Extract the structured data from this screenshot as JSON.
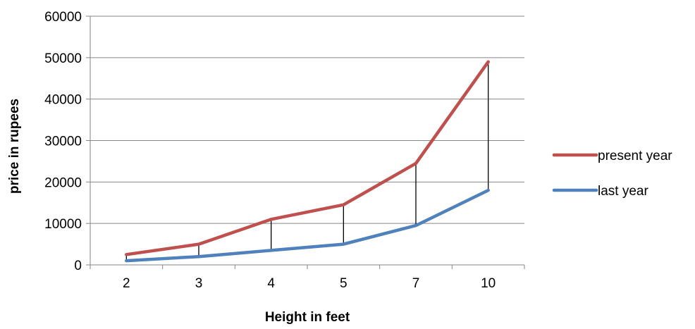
{
  "chart_data": {
    "type": "line",
    "title": "",
    "xlabel": "Height in feet",
    "ylabel": "price in rupees",
    "categories": [
      "2",
      "3",
      "4",
      "5",
      "7",
      "10"
    ],
    "ylim": [
      0,
      60000
    ],
    "yticks": [
      0,
      10000,
      20000,
      30000,
      40000,
      50000,
      60000
    ],
    "grid": "horizontal",
    "legend_position": "right",
    "drop_lines": true,
    "series": [
      {
        "name": "present year",
        "color": "#c0504d",
        "values": [
          2500,
          5000,
          11000,
          14500,
          24500,
          49000
        ]
      },
      {
        "name": "last year",
        "color": "#4f81bd",
        "values": [
          1000,
          2000,
          3500,
          5000,
          9500,
          18000
        ]
      }
    ]
  }
}
